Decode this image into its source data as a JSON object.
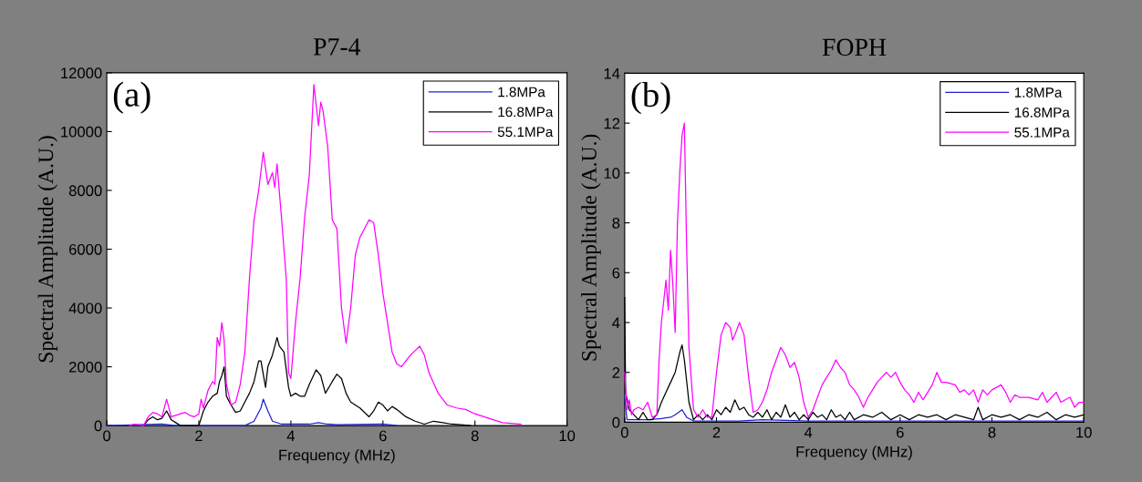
{
  "chart_data": [
    {
      "type": "line",
      "title": "P7-4",
      "xlabel": "Frequency (MHz)",
      "ylabel": "Spectral Amplitude (A.U.)",
      "annotations": [
        "(a)"
      ],
      "xlim": [
        0,
        10
      ],
      "ylim": [
        0,
        12000
      ],
      "xticks": [
        0,
        2,
        4,
        6,
        8,
        10
      ],
      "yticks": [
        0,
        2000,
        4000,
        6000,
        8000,
        10000,
        12000
      ],
      "grid": false,
      "legend": "top right",
      "series": [
        {
          "name": "1.8MPa",
          "color": "#2020d0",
          "x": [
            0,
            1.2,
            1.5,
            3.0,
            3.2,
            3.35,
            3.4,
            3.5,
            3.6,
            3.8,
            4.0,
            4.4,
            4.6,
            4.8,
            5.0,
            6.0,
            6.3
          ],
          "values": [
            0,
            50,
            0,
            0,
            150,
            600,
            900,
            500,
            150,
            50,
            50,
            50,
            100,
            50,
            30,
            50,
            0
          ]
        },
        {
          "name": "16.8MPa",
          "color": "#000000",
          "x": [
            0.8,
            0.9,
            1.0,
            1.1,
            1.2,
            1.3,
            1.4,
            1.5,
            1.6,
            2.0,
            2.1,
            2.2,
            2.3,
            2.4,
            2.45,
            2.5,
            2.55,
            2.6,
            2.7,
            2.8,
            2.9,
            3.0,
            3.1,
            3.2,
            3.3,
            3.35,
            3.45,
            3.5,
            3.6,
            3.7,
            3.75,
            3.85,
            3.95,
            4.0,
            4.1,
            4.2,
            4.3,
            4.4,
            4.55,
            4.65,
            4.75,
            4.9,
            5.0,
            5.1,
            5.2,
            5.3,
            5.5,
            5.7,
            5.8,
            5.9,
            6.0,
            6.1,
            6.2,
            6.3,
            6.5,
            6.7,
            6.9,
            7.1,
            7.3,
            7.5,
            7.7,
            7.9
          ],
          "values": [
            0,
            200,
            300,
            200,
            250,
            500,
            200,
            100,
            0,
            0,
            500,
            800,
            1000,
            1100,
            1500,
            1700,
            2000,
            1000,
            700,
            450,
            500,
            800,
            1100,
            1500,
            2200,
            2200,
            1300,
            2000,
            2400,
            3000,
            2700,
            2500,
            1300,
            1000,
            1100,
            1000,
            1000,
            1400,
            1900,
            1700,
            1100,
            1500,
            1750,
            1600,
            1100,
            800,
            600,
            300,
            500,
            800,
            700,
            500,
            650,
            550,
            300,
            150,
            50,
            150,
            100,
            50,
            30,
            0
          ]
        },
        {
          "name": "55.1MPa",
          "color": "#ff00ff",
          "x": [
            0.5,
            0.6,
            0.8,
            0.9,
            1.0,
            1.1,
            1.2,
            1.3,
            1.4,
            1.5,
            1.6,
            1.7,
            1.8,
            1.9,
            2.0,
            2.05,
            2.1,
            2.2,
            2.3,
            2.35,
            2.4,
            2.45,
            2.5,
            2.55,
            2.6,
            2.7,
            2.8,
            2.9,
            3.0,
            3.1,
            3.2,
            3.3,
            3.4,
            3.5,
            3.6,
            3.65,
            3.7,
            3.8,
            3.9,
            3.95,
            4.0,
            4.1,
            4.2,
            4.3,
            4.4,
            4.5,
            4.6,
            4.65,
            4.7,
            4.8,
            4.9,
            5.0,
            5.1,
            5.2,
            5.3,
            5.4,
            5.5,
            5.7,
            5.8,
            5.9,
            6.0,
            6.1,
            6.2,
            6.3,
            6.4,
            6.5,
            6.6,
            6.8,
            6.9,
            7.0,
            7.2,
            7.4,
            7.6,
            7.8,
            8.0,
            8.3,
            8.6,
            9.0
          ],
          "values": [
            0,
            50,
            0,
            300,
            450,
            400,
            300,
            900,
            300,
            350,
            400,
            450,
            350,
            300,
            400,
            900,
            600,
            1200,
            1500,
            1400,
            3000,
            2700,
            3500,
            2900,
            1400,
            700,
            800,
            1400,
            2500,
            5000,
            7000,
            8000,
            9300,
            8200,
            8600,
            8100,
            8900,
            7000,
            5000,
            1800,
            1600,
            3500,
            5000,
            7100,
            8500,
            11600,
            10200,
            11000,
            10700,
            9500,
            7000,
            6700,
            4000,
            2800,
            4000,
            5800,
            6400,
            7000,
            6900,
            5800,
            4500,
            3500,
            2500,
            2100,
            2000,
            2200,
            2400,
            2700,
            2400,
            1800,
            1100,
            700,
            600,
            550,
            400,
            250,
            100,
            50
          ]
        }
      ]
    },
    {
      "type": "line",
      "title": "FOPH",
      "xlabel": "Frequency (MHz)",
      "ylabel": "Spectral Amplitude (A.U.)",
      "annotations": [
        "(b)"
      ],
      "xlim": [
        0,
        10
      ],
      "ylim": [
        0,
        14
      ],
      "xticks": [
        0,
        2,
        4,
        6,
        8,
        10
      ],
      "yticks": [
        0,
        2,
        4,
        6,
        8,
        10,
        12,
        14
      ],
      "grid": false,
      "legend": "top right",
      "series": [
        {
          "name": "1.8MPa",
          "color": "#2020d0",
          "x": [
            0,
            0.05,
            0.5,
            0.8,
            1.0,
            1.1,
            1.25,
            1.35,
            1.5,
            2.0,
            2.5,
            3.0,
            4,
            6,
            8,
            10
          ],
          "values": [
            1.0,
            0.1,
            0.1,
            0.15,
            0.2,
            0.3,
            0.5,
            0.2,
            0.05,
            0.05,
            0.05,
            0.1,
            0.05,
            0.05,
            0.05,
            0.05
          ]
        },
        {
          "name": "16.8MPa",
          "color": "#000000",
          "x": [
            0,
            0.02,
            0.1,
            0.2,
            0.3,
            0.4,
            0.5,
            0.6,
            0.7,
            0.8,
            0.9,
            1.0,
            1.1,
            1.2,
            1.25,
            1.3,
            1.4,
            1.5,
            1.6,
            1.7,
            1.8,
            1.9,
            2.0,
            2.1,
            2.2,
            2.3,
            2.4,
            2.5,
            2.6,
            2.7,
            2.8,
            2.9,
            3.0,
            3.1,
            3.2,
            3.3,
            3.4,
            3.5,
            3.6,
            3.7,
            3.8,
            3.9,
            4.0,
            4.1,
            4.2,
            4.3,
            4.4,
            4.5,
            4.6,
            4.7,
            4.8,
            4.9,
            5.0,
            5.2,
            5.4,
            5.6,
            5.8,
            6.0,
            6.2,
            6.4,
            6.6,
            6.8,
            7.0,
            7.2,
            7.4,
            7.6,
            7.7,
            7.8,
            8.0,
            8.2,
            8.4,
            8.6,
            8.8,
            9.0,
            9.2,
            9.4,
            9.6,
            9.8,
            10.0
          ],
          "values": [
            5.0,
            1.2,
            0.5,
            0.3,
            0.1,
            0.4,
            0.1,
            0.1,
            0.3,
            0.8,
            1.2,
            1.6,
            2.0,
            2.8,
            3.1,
            2.5,
            0.8,
            0.1,
            0.3,
            0.1,
            0.3,
            0.1,
            0.5,
            0.3,
            0.6,
            0.4,
            0.9,
            0.5,
            0.6,
            0.3,
            0.2,
            0.4,
            0.2,
            0.5,
            0.1,
            0.4,
            0.2,
            0.7,
            0.2,
            0.4,
            0.1,
            0.3,
            0.1,
            0.4,
            0.2,
            0.3,
            0.1,
            0.5,
            0.2,
            0.3,
            0.1,
            0.4,
            0.1,
            0.3,
            0.2,
            0.4,
            0.1,
            0.3,
            0.1,
            0.3,
            0.2,
            0.3,
            0.1,
            0.3,
            0.2,
            0.1,
            0.6,
            0.1,
            0.3,
            0.2,
            0.3,
            0.1,
            0.3,
            0.2,
            0.4,
            0.1,
            0.3,
            0.2,
            0.3
          ]
        },
        {
          "name": "55.1MPa",
          "color": "#ff00ff",
          "x": [
            0,
            0.05,
            0.1,
            0.15,
            0.2,
            0.3,
            0.4,
            0.5,
            0.6,
            0.7,
            0.75,
            0.8,
            0.9,
            0.95,
            1.0,
            1.05,
            1.1,
            1.15,
            1.2,
            1.25,
            1.3,
            1.35,
            1.4,
            1.5,
            1.6,
            1.7,
            1.8,
            1.9,
            2.0,
            2.1,
            2.2,
            2.3,
            2.35,
            2.4,
            2.5,
            2.6,
            2.7,
            2.8,
            2.9,
            3.0,
            3.1,
            3.2,
            3.3,
            3.4,
            3.5,
            3.6,
            3.7,
            3.8,
            3.9,
            4.0,
            4.1,
            4.2,
            4.3,
            4.4,
            4.5,
            4.6,
            4.7,
            4.8,
            4.9,
            5.0,
            5.1,
            5.2,
            5.3,
            5.4,
            5.5,
            5.6,
            5.7,
            5.8,
            5.9,
            6.0,
            6.1,
            6.2,
            6.3,
            6.4,
            6.5,
            6.6,
            6.7,
            6.8,
            6.9,
            7.0,
            7.2,
            7.3,
            7.4,
            7.5,
            7.6,
            7.7,
            7.8,
            7.9,
            8.0,
            8.2,
            8.3,
            8.4,
            8.5,
            8.6,
            8.8,
            9.0,
            9.1,
            9.2,
            9.3,
            9.4,
            9.5,
            9.7,
            9.8,
            9.9,
            10.0
          ],
          "values": [
            2.0,
            0.5,
            0.9,
            0.3,
            0.5,
            0.6,
            0.5,
            0.8,
            0.2,
            0.3,
            2.5,
            4,
            5.7,
            4.5,
            6.9,
            5.5,
            3.6,
            8,
            10,
            11.5,
            12,
            7,
            3,
            0.5,
            0.2,
            0.5,
            0.2,
            0.2,
            2.0,
            3.5,
            4.0,
            3.8,
            3.3,
            3.5,
            4.0,
            3.5,
            1.8,
            0.4,
            0.5,
            0.8,
            1.3,
            2.0,
            2.5,
            3.0,
            2.7,
            2.2,
            2.4,
            1.8,
            0.8,
            0.2,
            0.5,
            1.0,
            1.5,
            1.8,
            2.1,
            2.5,
            2.2,
            2.0,
            1.5,
            1.3,
            1.0,
            0.6,
            1.0,
            1.3,
            1.6,
            1.8,
            2.0,
            1.8,
            2.0,
            1.6,
            1.3,
            1.1,
            0.8,
            1.2,
            0.9,
            1.2,
            1.5,
            2.0,
            1.6,
            1.6,
            1.5,
            1.2,
            1.3,
            1.1,
            1.3,
            0.8,
            1.3,
            1.1,
            1.3,
            1.5,
            1.2,
            0.8,
            1.1,
            1.0,
            1.0,
            0.9,
            1.2,
            0.8,
            1.0,
            1.2,
            0.8,
            1.0,
            0.6,
            0.8,
            0.8
          ]
        }
      ]
    }
  ]
}
